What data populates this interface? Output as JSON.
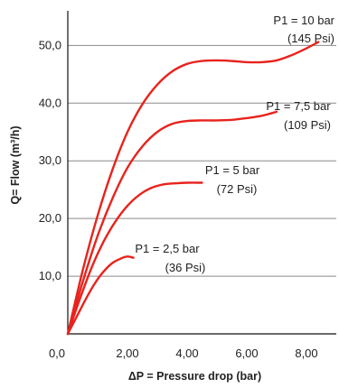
{
  "colors": {
    "curve": "#e8231d",
    "grid": "#8a8a8a",
    "axis": "#111111",
    "text": "#222222"
  },
  "chart_data": {
    "type": "line",
    "title": "",
    "xlabel": "ΔP = Pressure drop (bar)",
    "ylabel": "Q= Flow (m³/h)",
    "xlim": [
      0,
      9
    ],
    "ylim": [
      0,
      56
    ],
    "x_ticks": [
      {
        "value": 0,
        "label": "0,0"
      },
      {
        "value": 2,
        "label": "2,00"
      },
      {
        "value": 4,
        "label": "4,00"
      },
      {
        "value": 6,
        "label": "6,00"
      },
      {
        "value": 8,
        "label": "8,00"
      }
    ],
    "y_ticks": [
      {
        "value": 10,
        "label": "10,0"
      },
      {
        "value": 20,
        "label": "20,0"
      },
      {
        "value": 30,
        "label": "30,0"
      },
      {
        "value": 40,
        "label": "40,0"
      },
      {
        "value": 50,
        "label": "50,0"
      }
    ],
    "grid": "horizontal",
    "series": [
      {
        "name": "P1 = 2,5 bar",
        "sublabel": "(36 Psi)",
        "x": [
          0,
          0.3,
          0.6,
          0.9,
          1.2,
          1.5,
          1.8,
          2.0,
          2.2
        ],
        "y": [
          0,
          3.0,
          6.0,
          8.7,
          10.8,
          12.3,
          13.1,
          13.4,
          13.2
        ]
      },
      {
        "name": "P1 = 5 bar",
        "sublabel": "(72 Psi)",
        "x": [
          0,
          0.4,
          0.8,
          1.2,
          1.6,
          2.0,
          2.4,
          2.8,
          3.2,
          3.6,
          4.0,
          4.5
        ],
        "y": [
          0,
          6.0,
          11.5,
          16.0,
          19.5,
          22.2,
          24.1,
          25.3,
          25.9,
          26.1,
          26.2,
          26.2
        ]
      },
      {
        "name": "P1 = 7,5 bar",
        "sublabel": "(109 Psi)",
        "x": [
          0,
          0.5,
          1.0,
          1.5,
          2.0,
          2.5,
          3.0,
          3.5,
          4.0,
          4.5,
          5.0,
          5.5,
          6.0,
          6.5,
          7.0
        ],
        "y": [
          0,
          9.0,
          17.0,
          23.5,
          28.8,
          32.5,
          35.0,
          36.4,
          36.9,
          37.0,
          37.0,
          37.1,
          37.4,
          37.8,
          38.5
        ]
      },
      {
        "name": "P1 = 10 bar",
        "sublabel": "(145 Psi)",
        "x": [
          0,
          0.5,
          1.0,
          1.5,
          2.0,
          2.5,
          3.0,
          3.5,
          4.0,
          4.5,
          5.0,
          5.5,
          6.0,
          6.5,
          7.0,
          7.5,
          8.0,
          8.4
        ],
        "y": [
          0,
          11.0,
          20.5,
          28.5,
          35.0,
          39.8,
          43.2,
          45.5,
          46.8,
          47.3,
          47.4,
          47.3,
          47.1,
          47.1,
          47.4,
          48.3,
          49.5,
          50.6
        ]
      }
    ]
  }
}
